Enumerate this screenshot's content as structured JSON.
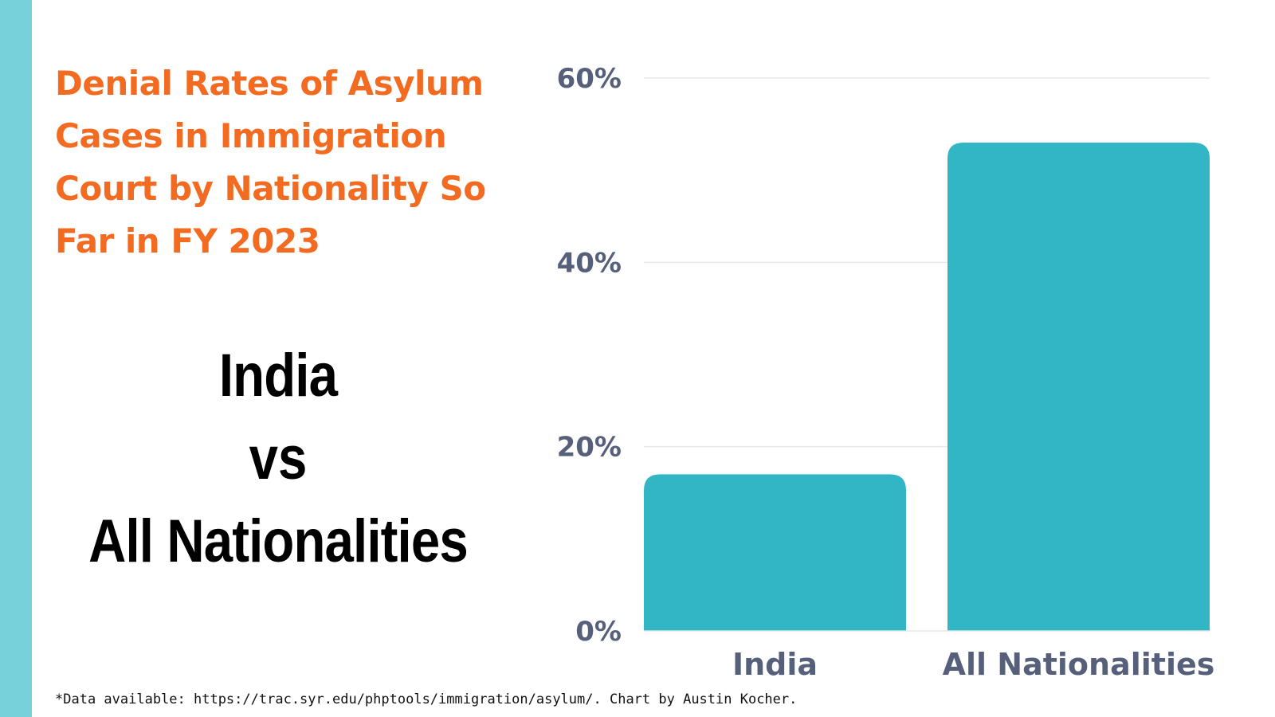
{
  "title": "Denial Rates of Asylum Cases in Immigration Court by Nationality So Far in FY 2023",
  "comparison": {
    "left": "India",
    "middle": "vs",
    "right": "All Nationalities"
  },
  "footnote": "*Data available: https://trac.syr.edu/phptools/immigration/asylum/. Chart by Austin Kocher.",
  "colors": {
    "accent_bar": "#76d1da",
    "title": "#f26b21",
    "bars": "#32b6c5",
    "axis_text": "#56607a",
    "gridline": "#e8e8e8"
  },
  "chart_data": {
    "type": "bar",
    "categories": [
      "India",
      "All Nationalities"
    ],
    "values": [
      17,
      53
    ],
    "yticks": [
      "0%",
      "20%",
      "40%",
      "60%"
    ],
    "ytick_values": [
      0,
      20,
      40,
      60
    ],
    "ylim": [
      0,
      60
    ],
    "unit": "%",
    "grid": true,
    "legend": "none"
  }
}
